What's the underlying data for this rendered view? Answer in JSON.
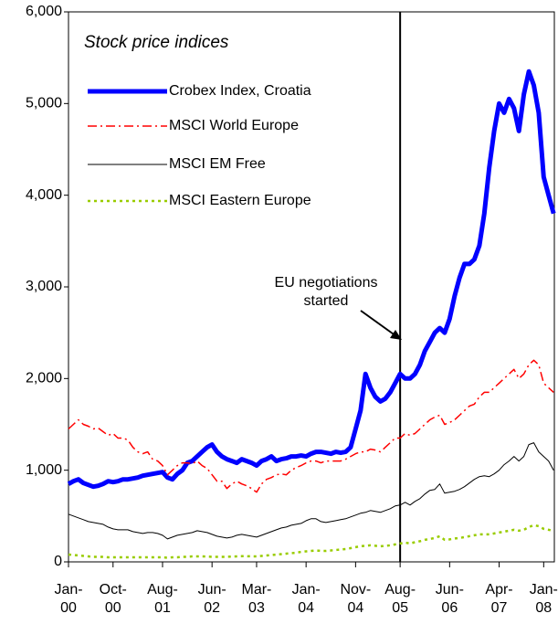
{
  "chart_data": {
    "type": "line",
    "legend_title": "Stock price indices",
    "annotation": "EU negotiations started",
    "event_x": "Aug-05",
    "x": [
      "Jan-00",
      "Feb-00",
      "Mar-00",
      "Apr-00",
      "May-00",
      "Jun-00",
      "Jul-00",
      "Aug-00",
      "Sep-00",
      "Oct-00",
      "Nov-00",
      "Dec-00",
      "Jan-01",
      "Feb-01",
      "Mar-01",
      "Apr-01",
      "May-01",
      "Jun-01",
      "Jul-01",
      "Aug-01",
      "Sep-01",
      "Oct-01",
      "Nov-01",
      "Dec-01",
      "Jan-02",
      "Feb-02",
      "Mar-02",
      "Apr-02",
      "May-02",
      "Jun-02",
      "Jul-02",
      "Aug-02",
      "Sep-02",
      "Oct-02",
      "Nov-02",
      "Dec-02",
      "Jan-03",
      "Feb-03",
      "Mar-03",
      "Apr-03",
      "May-03",
      "Jun-03",
      "Jul-03",
      "Aug-03",
      "Sep-03",
      "Oct-03",
      "Nov-03",
      "Dec-03",
      "Jan-04",
      "Feb-04",
      "Mar-04",
      "Apr-04",
      "May-04",
      "Jun-04",
      "Jul-04",
      "Aug-04",
      "Sep-04",
      "Oct-04",
      "Nov-04",
      "Dec-04",
      "Jan-05",
      "Feb-05",
      "Mar-05",
      "Apr-05",
      "May-05",
      "Jun-05",
      "Jul-05",
      "Aug-05",
      "Sep-05",
      "Oct-05",
      "Nov-05",
      "Dec-05",
      "Jan-06",
      "Feb-06",
      "Mar-06",
      "Apr-06",
      "May-06",
      "Jun-06",
      "Jul-06",
      "Aug-06",
      "Sep-06",
      "Oct-06",
      "Nov-06",
      "Dec-06",
      "Jan-07",
      "Feb-07",
      "Mar-07",
      "Apr-07",
      "May-07",
      "Jun-07",
      "Jul-07",
      "Aug-07",
      "Sep-07",
      "Oct-07",
      "Nov-07",
      "Dec-07",
      "Jan-08",
      "Feb-08",
      "Mar-08"
    ],
    "xticks": [
      "Jan-00",
      "Oct-00",
      "Aug-01",
      "Jun-02",
      "Mar-03",
      "Jan-04",
      "Nov-04",
      "Aug-05",
      "Jun-06",
      "Apr-07",
      "Jan-08"
    ],
    "ylim": [
      0,
      6000
    ],
    "yticks": [
      0,
      {
        "value": 1000,
        "label": "1,000"
      },
      {
        "value": 2000,
        "label": "2,000"
      },
      {
        "value": 3000,
        "label": "3,000"
      },
      {
        "value": 4000,
        "label": "4,000"
      },
      {
        "value": 5000,
        "label": "5,000"
      },
      {
        "value": 6000,
        "label": "6,000"
      }
    ],
    "series": [
      {
        "name": "Crobex Index, Croatia",
        "color": "#0000ff",
        "values": [
          850,
          880,
          900,
          860,
          840,
          820,
          830,
          850,
          880,
          870,
          880,
          900,
          900,
          910,
          920,
          940,
          950,
          960,
          970,
          980,
          920,
          900,
          960,
          1000,
          1080,
          1100,
          1150,
          1200,
          1250,
          1280,
          1200,
          1150,
          1120,
          1100,
          1080,
          1120,
          1100,
          1080,
          1050,
          1100,
          1120,
          1150,
          1100,
          1120,
          1130,
          1150,
          1150,
          1160,
          1150,
          1180,
          1200,
          1200,
          1190,
          1180,
          1200,
          1190,
          1200,
          1250,
          1450,
          1650,
          2050,
          1900,
          1800,
          1750,
          1780,
          1850,
          1950,
          2050,
          2000,
          2000,
          2050,
          2150,
          2300,
          2400,
          2500,
          2550,
          2500,
          2650,
          2900,
          3100,
          3250,
          3250,
          3300,
          3450,
          3800,
          4300,
          4700,
          5000,
          4900,
          5050,
          4950,
          4700,
          5100,
          5350,
          5200,
          4900,
          4200,
          4000,
          3800
        ]
      },
      {
        "name": "MSCI World Europe",
        "color": "#ff0000",
        "values": [
          1450,
          1500,
          1550,
          1500,
          1480,
          1450,
          1460,
          1420,
          1380,
          1400,
          1350,
          1350,
          1330,
          1250,
          1200,
          1180,
          1200,
          1120,
          1100,
          1050,
          950,
          1000,
          1050,
          1080,
          1080,
          1070,
          1100,
          1050,
          1020,
          950,
          880,
          880,
          800,
          850,
          880,
          850,
          830,
          800,
          760,
          850,
          900,
          920,
          950,
          960,
          950,
          1000,
          1030,
          1050,
          1080,
          1100,
          1100,
          1080,
          1100,
          1100,
          1100,
          1100,
          1120,
          1150,
          1180,
          1200,
          1200,
          1230,
          1220,
          1200,
          1250,
          1300,
          1350,
          1350,
          1400,
          1380,
          1400,
          1450,
          1500,
          1550,
          1580,
          1600,
          1500,
          1520,
          1550,
          1600,
          1650,
          1700,
          1720,
          1800,
          1850,
          1850,
          1900,
          1950,
          2000,
          2050,
          2100,
          2000,
          2050,
          2150,
          2200,
          2150,
          1950,
          1900,
          1850
        ]
      },
      {
        "name": "MSCI EM Free",
        "color": "#000000",
        "values": [
          520,
          500,
          480,
          460,
          440,
          430,
          420,
          410,
          380,
          360,
          350,
          350,
          350,
          330,
          320,
          310,
          320,
          320,
          310,
          290,
          250,
          270,
          290,
          300,
          310,
          320,
          340,
          330,
          320,
          300,
          280,
          270,
          260,
          270,
          290,
          300,
          290,
          280,
          270,
          290,
          310,
          330,
          350,
          370,
          380,
          400,
          410,
          420,
          450,
          470,
          470,
          440,
          430,
          440,
          450,
          460,
          470,
          490,
          510,
          530,
          540,
          560,
          550,
          540,
          560,
          580,
          610,
          620,
          650,
          620,
          660,
          690,
          740,
          780,
          790,
          850,
          750,
          760,
          770,
          790,
          820,
          860,
          900,
          930,
          940,
          930,
          960,
          1000,
          1060,
          1100,
          1150,
          1100,
          1150,
          1280,
          1300,
          1200,
          1150,
          1100,
          1000
        ]
      },
      {
        "name": "MSCI Eastern Europe",
        "color": "#99cc00",
        "values": [
          80,
          75,
          70,
          65,
          60,
          55,
          55,
          55,
          50,
          50,
          50,
          50,
          50,
          50,
          50,
          50,
          50,
          50,
          50,
          50,
          45,
          50,
          50,
          55,
          55,
          60,
          60,
          60,
          58,
          55,
          55,
          55,
          55,
          58,
          60,
          62,
          62,
          60,
          60,
          65,
          70,
          75,
          80,
          85,
          90,
          95,
          100,
          110,
          115,
          120,
          125,
          120,
          120,
          125,
          130,
          135,
          140,
          150,
          160,
          170,
          175,
          180,
          175,
          170,
          175,
          180,
          190,
          200,
          210,
          200,
          215,
          225,
          240,
          250,
          260,
          280,
          240,
          245,
          255,
          260,
          270,
          280,
          290,
          300,
          300,
          300,
          310,
          320,
          330,
          340,
          350,
          340,
          350,
          380,
          400,
          390,
          360,
          350,
          340
        ]
      }
    ]
  }
}
